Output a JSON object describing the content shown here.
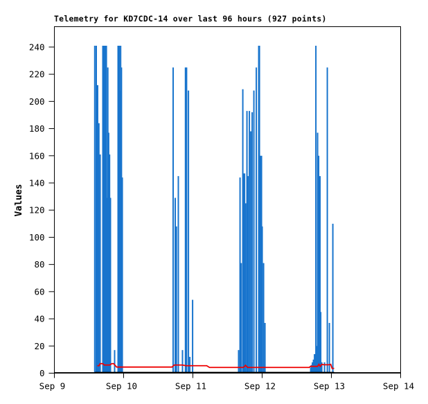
{
  "chart": {
    "title": "Telemetry for KD7CDC-14 over last 96 hours (927 points)",
    "station": "KD7CDC-14",
    "window_hours": 96,
    "points_count": 927,
    "y_label": "Values"
  },
  "colors": {
    "background": "#FFFFFF",
    "text": "#000000",
    "axis": "#000000",
    "bar_series": "#1874CD",
    "line_series": "#EE0000",
    "baseline_series": "#000000"
  },
  "chart_data": {
    "type": "bar",
    "title": "Telemetry for KD7CDC-14 over last 96 hours (927 points)",
    "xlabel": "",
    "ylabel": "Values",
    "ylim": [
      0,
      255
    ],
    "y_ticks": [
      0,
      20,
      40,
      60,
      80,
      100,
      120,
      140,
      160,
      180,
      200,
      220,
      240
    ],
    "x_tick_labels": [
      "Sep 9",
      "Sep 10",
      "Sep 11",
      "Sep 12",
      "Sep 13",
      "Sep 14"
    ],
    "x_unit": "days since Sep 9",
    "xlim": [
      0,
      5
    ],
    "grid": false,
    "legend": false,
    "series": [
      {
        "name": "telemetry-channel-blue",
        "style": "impulse",
        "color": "#1874CD",
        "points": [
          [
            0.583,
            241
          ],
          [
            0.605,
            241
          ],
          [
            0.625,
            212
          ],
          [
            0.643,
            184
          ],
          [
            0.661,
            161
          ],
          [
            0.7,
            241
          ],
          [
            0.713,
            241,
            3
          ],
          [
            0.726,
            241,
            3
          ],
          [
            0.739,
            241,
            3
          ],
          [
            0.751,
            241
          ],
          [
            0.762,
            129
          ],
          [
            0.772,
            225
          ],
          [
            0.784,
            177
          ],
          [
            0.797,
            161
          ],
          [
            0.81,
            129
          ],
          [
            0.87,
            17
          ],
          [
            0.92,
            241
          ],
          [
            0.933,
            241,
            3
          ],
          [
            0.946,
            208
          ],
          [
            0.957,
            241
          ],
          [
            0.969,
            225
          ],
          [
            0.981,
            144
          ],
          [
            1.715,
            225
          ],
          [
            1.745,
            129
          ],
          [
            1.762,
            108
          ],
          [
            1.79,
            145
          ],
          [
            1.85,
            17
          ],
          [
            1.893,
            225
          ],
          [
            1.909,
            225
          ],
          [
            1.936,
            208
          ],
          [
            1.956,
            12
          ],
          [
            1.996,
            54
          ],
          [
            2.66,
            17
          ],
          [
            2.681,
            144
          ],
          [
            2.697,
            81
          ],
          [
            2.721,
            209
          ],
          [
            2.741,
            147,
            3
          ],
          [
            2.761,
            125
          ],
          [
            2.781,
            193
          ],
          [
            2.796,
            145
          ],
          [
            2.816,
            193
          ],
          [
            2.836,
            178
          ],
          [
            2.856,
            192
          ],
          [
            2.881,
            208
          ],
          [
            2.916,
            225
          ],
          [
            2.956,
            241,
            3
          ],
          [
            2.976,
            160,
            5
          ],
          [
            3.001,
            108
          ],
          [
            3.021,
            81
          ],
          [
            3.041,
            37
          ],
          [
            3.701,
            4
          ],
          [
            3.716,
            6,
            3
          ],
          [
            3.731,
            8,
            3
          ],
          [
            3.746,
            10,
            3
          ],
          [
            3.761,
            14,
            3
          ],
          [
            3.776,
            241
          ],
          [
            3.791,
            20,
            3
          ],
          [
            3.801,
            177
          ],
          [
            3.816,
            160
          ],
          [
            3.831,
            145,
            3
          ],
          [
            3.846,
            45
          ],
          [
            3.861,
            8
          ],
          [
            3.901,
            8
          ],
          [
            3.941,
            225
          ],
          [
            3.971,
            37
          ],
          [
            4.021,
            110
          ]
        ]
      },
      {
        "name": "telemetry-channel-red",
        "style": "line",
        "color": "#EE0000",
        "points": [
          [
            0.62,
            5.5
          ],
          [
            0.645,
            5.5
          ],
          [
            0.66,
            7.0
          ],
          [
            0.7,
            7.0
          ],
          [
            0.72,
            6.0
          ],
          [
            0.8,
            6.0
          ],
          [
            0.83,
            7.0
          ],
          [
            0.855,
            7.0
          ],
          [
            0.9,
            4.5
          ],
          [
            1.7,
            4.5
          ],
          [
            1.73,
            6.0
          ],
          [
            1.85,
            6.0
          ],
          [
            1.9,
            5.5
          ],
          [
            2.2,
            5.5
          ],
          [
            2.24,
            4.2
          ],
          [
            2.73,
            4.2
          ],
          [
            2.76,
            5.8
          ],
          [
            2.79,
            4.2
          ],
          [
            3.68,
            4.2
          ],
          [
            3.7,
            5.0
          ],
          [
            3.8,
            5.0
          ],
          [
            3.82,
            6.5
          ],
          [
            3.84,
            5.0
          ],
          [
            3.86,
            6.5
          ],
          [
            3.89,
            6.2
          ],
          [
            3.97,
            6.2
          ],
          [
            3.99,
            6.5
          ],
          [
            4.01,
            3.5
          ],
          [
            4.04,
            3.5
          ]
        ]
      },
      {
        "name": "telemetry-channel-black",
        "style": "line",
        "color": "#000000",
        "points": [
          [
            0.583,
            0.5
          ],
          [
            4.04,
            0.5
          ]
        ]
      }
    ]
  }
}
